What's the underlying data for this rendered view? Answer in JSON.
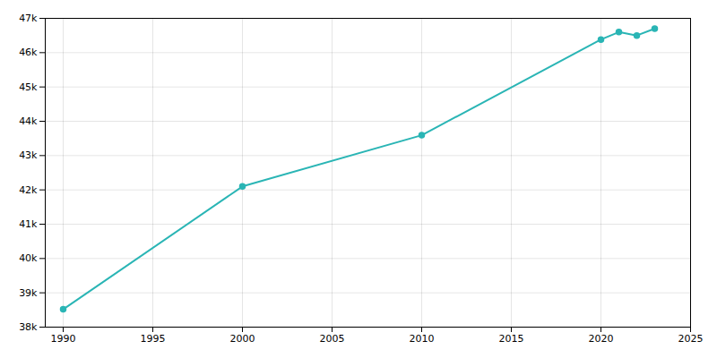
{
  "chart_data": {
    "type": "line",
    "x": [
      1990,
      2000,
      2010,
      2020,
      2021,
      2022,
      2023
    ],
    "values": [
      38519,
      42100,
      43593,
      46383,
      46600,
      46500,
      46700
    ],
    "color": "#2ab5b5",
    "marker": "circle",
    "xlim": [
      1989,
      2025
    ],
    "xticks": [
      1990,
      1995,
      2000,
      2005,
      2010,
      2015,
      2020,
      2025
    ],
    "ylim": [
      38000,
      47000
    ],
    "yticks": [
      {
        "value": 38000,
        "label": "38k"
      },
      {
        "value": 39000,
        "label": "39k"
      },
      {
        "value": 40000,
        "label": "40k"
      },
      {
        "value": 41000,
        "label": "41k"
      },
      {
        "value": 42000,
        "label": "42k"
      },
      {
        "value": 43000,
        "label": "43k"
      },
      {
        "value": 44000,
        "label": "44k"
      },
      {
        "value": 45000,
        "label": "45k"
      },
      {
        "value": 46000,
        "label": "46k"
      },
      {
        "value": 47000,
        "label": "47k"
      }
    ],
    "grid": true
  }
}
